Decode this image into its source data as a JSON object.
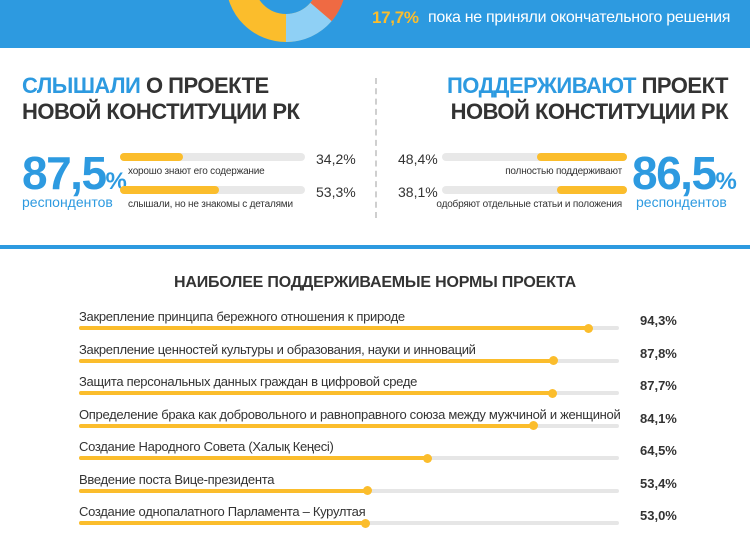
{
  "top": {
    "percent": "17,7%",
    "text": "пока не приняли окончательного решения"
  },
  "left": {
    "title_hl": "СЛЫШАЛИ",
    "title_rest": " О ПРОЕКТЕ",
    "title_line2": "НОВОЙ КОНСТИТУЦИИ РК",
    "big": "87,5",
    "big_pct": "%",
    "sub": "респондентов",
    "items": [
      {
        "label": "хорошо знают его содержание",
        "value": "34,2%",
        "fraction": 0.342
      },
      {
        "label": "слышали, но не знакомы с деталями",
        "value": "53,3%",
        "fraction": 0.533
      }
    ]
  },
  "right": {
    "title_hl": "ПОДДЕРЖИВАЮТ",
    "title_rest": " ПРОЕКТ",
    "title_line2": "НОВОЙ КОНСТИТУЦИИ РК",
    "big": "86,5",
    "big_pct": "%",
    "sub": "респондентов",
    "items": [
      {
        "label": "полностью поддерживают",
        "value": "48,4%",
        "fraction": 0.484
      },
      {
        "label": "одобряют отдельные статьи и положения",
        "value": "38,1%",
        "fraction": 0.381
      }
    ]
  },
  "colors": {
    "blue": "#2d9ae0",
    "yellow": "#fbbd2c",
    "orange": "#ef6a43",
    "track": "#e6e6e6"
  },
  "chart_data": {
    "type": "bar",
    "title": "НАИБОЛЕЕ ПОДДЕРЖИВАЕМЫЕ НОРМЫ ПРОЕКТА",
    "xlim": [
      0,
      100
    ],
    "grid": false,
    "categories": [
      "Закрепление принципа бережного отношения к природе",
      "Закрепление ценностей культуры и образования, науки и инноваций",
      "Защита персональных данных граждан в цифровой среде",
      "Определение брака как добровольного и равноправного союза между мужчиной и женщиной",
      "Создание Народного Совета (Халық Кеңесі)",
      "Введение поста Вице-президента",
      "Создание однопалатного Парламента – Курултая"
    ],
    "values": [
      94.3,
      87.8,
      87.7,
      84.1,
      64.5,
      53.4,
      53.0
    ],
    "value_labels": [
      "94,3%",
      "87,8%",
      "87,7%",
      "84,1%",
      "64,5%",
      "53,4%",
      "53,0%"
    ]
  }
}
